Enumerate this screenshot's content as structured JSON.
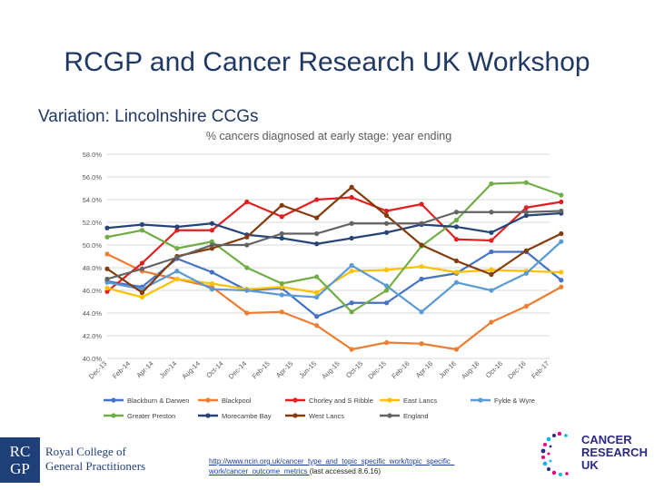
{
  "slide": {
    "title": "RCGP and Cancer Research UK Workshop",
    "subtitle": "Variation: Lincolnshire CCGs"
  },
  "footer": {
    "rcgp_mark": "RC GP",
    "rcgp_line1": "Royal College of",
    "rcgp_line2": "General Practitioners",
    "ref_link_1": "http://www.ncin.org.uk/cancer_type_and_topic_specific_work/topic_specific_",
    "ref_link_2": "work/cancer_outcome_metrics",
    "ref_suffix": " (last accessed 8.6.16)",
    "cruk_line1": "CANCER",
    "cruk_line2": "RESEARCH",
    "cruk_line3": "UK"
  },
  "colors": {
    "grid": "#d9d9d9",
    "axis_text": "#595959"
  },
  "chart_data": {
    "type": "line",
    "title": "% cancers diagnosed at early stage: year ending",
    "xlabel": "",
    "ylabel": "",
    "ylim": [
      40,
      58
    ],
    "yticks": [
      40,
      42,
      44,
      46,
      48,
      50,
      52,
      54,
      56,
      58
    ],
    "ytick_labels": [
      "40.0%",
      "42.0%",
      "44.0%",
      "46.0%",
      "48.0%",
      "50.0%",
      "52.0%",
      "54.0%",
      "56.0%",
      "58.0%"
    ],
    "categories": [
      "Dec-13",
      "Feb-14",
      "Apr-14",
      "Jun-14",
      "Aug-14",
      "Oct-14",
      "Dec-14",
      "Feb-15",
      "Apr-15",
      "Jun-15",
      "Aug-15",
      "Oct-15",
      "Dec-15",
      "Feb-16",
      "Apr-16",
      "Jun-16",
      "Aug-16",
      "Oct-16",
      "Dec-16",
      "Feb-17"
    ],
    "x": [
      0,
      1.5,
      3,
      4.5,
      6,
      7.5,
      9,
      10.5,
      12,
      13.5,
      15,
      16.5,
      18,
      19.5
    ],
    "series": [
      {
        "name": "Blackburn & Darwen",
        "color": "#4472c4",
        "values": [
          46.8,
          46.3,
          48.8,
          47.6,
          46.0,
          46.2,
          43.7,
          44.9,
          44.9,
          47.0,
          47.5,
          49.4,
          49.4,
          46.9
        ]
      },
      {
        "name": "Blackpool",
        "color": "#ed7d31",
        "values": [
          49.2,
          47.7,
          47.0,
          46.3,
          44.0,
          44.1,
          42.9,
          40.8,
          41.4,
          41.3,
          40.8,
          43.2,
          44.6,
          46.3
        ]
      },
      {
        "name": "Chorley and S Ribble",
        "color": "#e02020",
        "values": [
          45.9,
          48.4,
          51.3,
          51.3,
          53.8,
          52.5,
          54.0,
          54.2,
          53.0,
          53.6,
          50.5,
          50.4,
          53.3,
          53.8
        ]
      },
      {
        "name": "East Lancs",
        "color": "#ffc000",
        "values": [
          46.2,
          45.4,
          47.0,
          46.6,
          46.1,
          46.3,
          45.8,
          47.7,
          47.8,
          48.1,
          47.6,
          47.8,
          47.7,
          47.6
        ]
      },
      {
        "name": "Fylde & Wyre",
        "color": "#5b9bd5",
        "values": [
          46.7,
          46.1,
          47.7,
          46.1,
          46.0,
          45.6,
          45.4,
          48.2,
          46.4,
          44.1,
          46.7,
          46.0,
          47.5,
          50.3
        ]
      },
      {
        "name": "Greater Preston",
        "color": "#70ad47",
        "values": [
          50.7,
          51.3,
          49.7,
          50.3,
          48.0,
          46.6,
          47.2,
          44.1,
          46.0,
          49.9,
          52.2,
          55.4,
          55.5,
          54.4
        ]
      },
      {
        "name": "Morecambe Bay",
        "color": "#264478",
        "values": [
          51.5,
          51.8,
          51.6,
          51.9,
          50.9,
          50.6,
          50.1,
          50.6,
          51.1,
          51.8,
          51.6,
          51.1,
          52.6,
          52.8
        ]
      },
      {
        "name": "West Lancs",
        "color": "#843c0c",
        "values": [
          47.9,
          45.8,
          49.0,
          49.7,
          50.7,
          53.5,
          52.4,
          55.1,
          52.6,
          50.0,
          48.6,
          47.4,
          49.5,
          51.0
        ]
      },
      {
        "name": "England",
        "color": "#636363",
        "values": [
          47.0,
          47.9,
          48.9,
          50.0,
          50.0,
          51.0,
          51.0,
          51.9,
          51.9,
          51.9,
          52.9,
          52.9,
          52.9,
          53.0
        ]
      }
    ]
  }
}
